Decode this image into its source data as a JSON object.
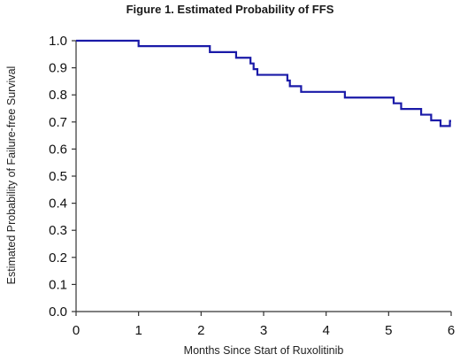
{
  "chart_data": {
    "type": "line",
    "title": "Figure 1. Estimated Probability of FFS",
    "xlabel": "Months   Since   Start  of Ruxolitinib",
    "ylabel": "Estimated   Probability   of Failure-free  Survival",
    "xlim": [
      0,
      6
    ],
    "ylim": [
      0,
      1.0
    ],
    "x_ticks": [
      "0",
      "1",
      "2",
      "3",
      "4",
      "5",
      "6"
    ],
    "y_ticks": [
      "0.0",
      "0.1",
      "0.2",
      "0.3",
      "0.4",
      "0.5",
      "0.6",
      "0.7",
      "0.8",
      "0.9",
      "1.0"
    ],
    "series": [
      {
        "color": "#1a1aa8",
        "step": true,
        "points": [
          [
            0,
            1.0
          ],
          [
            1.0,
            0.98
          ],
          [
            2.14,
            0.958
          ],
          [
            2.56,
            0.937
          ],
          [
            2.79,
            0.916
          ],
          [
            2.84,
            0.895
          ],
          [
            2.9,
            0.874
          ],
          [
            3.38,
            0.853
          ],
          [
            3.42,
            0.832
          ],
          [
            3.6,
            0.811
          ],
          [
            4.3,
            0.79
          ],
          [
            5.08,
            0.769
          ],
          [
            5.2,
            0.748
          ],
          [
            5.52,
            0.727
          ],
          [
            5.68,
            0.706
          ],
          [
            5.83,
            0.685
          ],
          [
            5.98,
            0.704
          ],
          [
            6.0,
            0.704
          ]
        ]
      }
    ],
    "grid": false
  }
}
